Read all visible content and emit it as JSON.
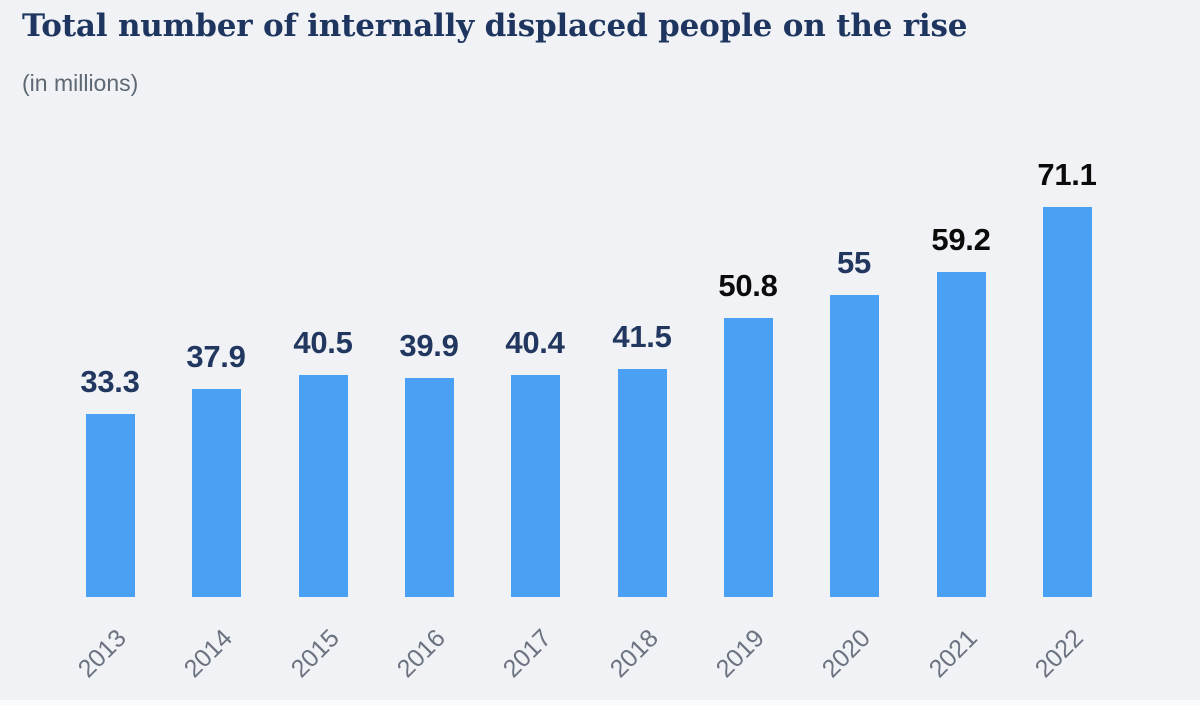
{
  "chart": {
    "title": "Total number of internally displaced people on the rise",
    "subtitle": "(in millions)"
  },
  "chart_data": {
    "type": "bar",
    "title": "Total number of internally displaced people on the rise",
    "subtitle": "(in millions)",
    "categories": [
      "2013",
      "2014",
      "2015",
      "2016",
      "2017",
      "2018",
      "2019",
      "2020",
      "2021",
      "2022"
    ],
    "values": [
      33.3,
      37.9,
      40.5,
      39.9,
      40.4,
      41.5,
      50.8,
      55,
      59.2,
      71.1
    ],
    "value_labels": [
      "33.3",
      "37.9",
      "40.5",
      "39.9",
      "40.4",
      "41.5",
      "50.8",
      "55",
      "59.2",
      "71.1"
    ],
    "xlabel": "",
    "ylabel": "",
    "ylim": [
      0,
      75
    ],
    "grid": false,
    "legend": false,
    "bar_color": "#4aa0f5",
    "value_label_colors": [
      "#21375f",
      "#21375f",
      "#21375f",
      "#21375f",
      "#21375f",
      "#21375f",
      "#0b0b0b",
      "#21375f",
      "#0b0b0b",
      "#0b0b0b"
    ],
    "category_label_color": "#6b7280",
    "category_label_rotation": -45,
    "background_color": "#f0f2f5",
    "title_color": "#1e355f",
    "subtitle_color": "#5e6973"
  }
}
